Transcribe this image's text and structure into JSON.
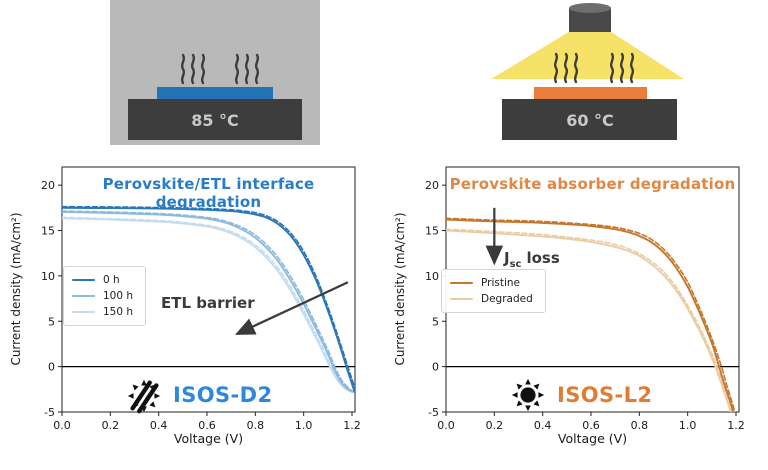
{
  "setup_diagrams": {
    "left": {
      "temperature": "85 °C",
      "sample_color": "#2272b5",
      "background_color": "#b9b9b9",
      "plate_color": "#3d3d3d"
    },
    "right": {
      "temperature": "60 °C",
      "sample_color": "#e87d3c",
      "light_color": "#f6e169",
      "plate_color": "#3d3d3d"
    }
  },
  "chart_data": [
    {
      "type": "line",
      "title": "Perovskite/ETL interface degradation",
      "title_color": "#2a7cc9",
      "xlabel": "Voltage (V)",
      "ylabel": "Current density (mA/cm²)",
      "xlim": [
        0,
        1.2124
      ],
      "ylim": [
        -5,
        22
      ],
      "xticks": [
        "0.0",
        "0.2",
        "0.4",
        "0.6",
        "0.8",
        "1.0",
        "1.2"
      ],
      "yticks": [
        "-5",
        "0",
        "5",
        "10",
        "15",
        "20"
      ],
      "grid": false,
      "legend_position": "center left",
      "legend": [
        {
          "label": "0 h",
          "color": "#2b76b9"
        },
        {
          "label": "100 h",
          "color": "#8ab9dd"
        },
        {
          "label": "150 h",
          "color": "#c3dcef"
        }
      ],
      "badge": {
        "text": "ISOS-D2",
        "color": "#2f86dd",
        "icon": "crossed-sun-icon"
      },
      "annotation_color": "#3a3a3a",
      "annotations": [
        {
          "text": "ETL barrier",
          "arrow": {
            "from": [
              1.183,
              9.3
            ],
            "to": [
              0.724,
              3.6
            ]
          }
        }
      ],
      "series": [
        {
          "name": "150 h",
          "style": "solid",
          "color": "#c3dcef",
          "points": [
            [
              0,
              16.35
            ],
            [
              0.2,
              16.2
            ],
            [
              0.4,
              15.98
            ],
            [
              0.5,
              15.78
            ],
            [
              0.6,
              15.45
            ],
            [
              0.65,
              15.15
            ],
            [
              0.7,
              14.7
            ],
            [
              0.75,
              14.05
            ],
            [
              0.8,
              13.15
            ],
            [
              0.85,
              11.9
            ],
            [
              0.9,
              10.3
            ],
            [
              0.95,
              8.2
            ],
            [
              1.0,
              5.8
            ],
            [
              1.05,
              3.2
            ],
            [
              1.08,
              1.6
            ],
            [
              1.11,
              -0.1
            ],
            [
              1.14,
              -1.5
            ],
            [
              1.17,
              -2.4
            ],
            [
              1.2,
              -2.8
            ]
          ]
        },
        {
          "name": "150 h (dashed)",
          "style": "dashed",
          "color": "#c3dcef",
          "points": [
            [
              0,
              16.45
            ],
            [
              0.2,
              16.3
            ],
            [
              0.4,
              16.1
            ],
            [
              0.5,
              15.9
            ],
            [
              0.6,
              15.58
            ],
            [
              0.65,
              15.3
            ],
            [
              0.7,
              14.88
            ],
            [
              0.75,
              14.27
            ],
            [
              0.8,
              13.42
            ],
            [
              0.85,
              12.22
            ],
            [
              0.9,
              10.65
            ],
            [
              0.95,
              8.6
            ],
            [
              1.0,
              6.2
            ],
            [
              1.05,
              3.55
            ],
            [
              1.08,
              1.95
            ],
            [
              1.11,
              0.25
            ],
            [
              1.14,
              -1.2
            ],
            [
              1.17,
              -2.2
            ],
            [
              1.2,
              -2.7
            ]
          ]
        },
        {
          "name": "100 h",
          "style": "solid",
          "color": "#8ab9dd",
          "points": [
            [
              0,
              17.05
            ],
            [
              0.2,
              16.93
            ],
            [
              0.4,
              16.75
            ],
            [
              0.5,
              16.58
            ],
            [
              0.6,
              16.3
            ],
            [
              0.65,
              16.05
            ],
            [
              0.7,
              15.65
            ],
            [
              0.75,
              15.05
            ],
            [
              0.8,
              14.2
            ],
            [
              0.85,
              13.0
            ],
            [
              0.9,
              11.4
            ],
            [
              0.95,
              9.3
            ],
            [
              1.0,
              6.9
            ],
            [
              1.05,
              4.2
            ],
            [
              1.1,
              1.4
            ],
            [
              1.13,
              -0.5
            ],
            [
              1.16,
              -1.9
            ],
            [
              1.19,
              -2.6
            ],
            [
              1.208,
              -2.8
            ]
          ]
        },
        {
          "name": "100 h (dashed)",
          "style": "dashed",
          "color": "#8ab9dd",
          "points": [
            [
              0,
              17.15
            ],
            [
              0.2,
              17.04
            ],
            [
              0.4,
              16.87
            ],
            [
              0.5,
              16.7
            ],
            [
              0.6,
              16.44
            ],
            [
              0.65,
              16.2
            ],
            [
              0.7,
              15.83
            ],
            [
              0.75,
              15.28
            ],
            [
              0.8,
              14.5
            ],
            [
              0.85,
              13.35
            ],
            [
              0.9,
              11.8
            ],
            [
              0.95,
              9.75
            ],
            [
              1.0,
              7.35
            ],
            [
              1.05,
              4.65
            ],
            [
              1.1,
              1.85
            ],
            [
              1.13,
              -0.1
            ],
            [
              1.16,
              -1.6
            ],
            [
              1.19,
              -2.45
            ],
            [
              1.208,
              -2.75
            ]
          ]
        },
        {
          "name": "0 h",
          "style": "solid",
          "color": "#2b76b9",
          "points": [
            [
              0,
              17.5
            ],
            [
              0.2,
              17.47
            ],
            [
              0.4,
              17.42
            ],
            [
              0.5,
              17.36
            ],
            [
              0.6,
              17.28
            ],
            [
              0.7,
              17.14
            ],
            [
              0.75,
              17.0
            ],
            [
              0.8,
              16.78
            ],
            [
              0.85,
              16.38
            ],
            [
              0.9,
              15.6
            ],
            [
              0.95,
              14.3
            ],
            [
              1.0,
              12.3
            ],
            [
              1.05,
              9.6
            ],
            [
              1.1,
              6.2
            ],
            [
              1.15,
              2.3
            ],
            [
              1.18,
              -0.3
            ],
            [
              1.2,
              -1.9
            ],
            [
              1.21,
              -2.7
            ]
          ]
        },
        {
          "name": "0 h (dashed)",
          "style": "dashed",
          "color": "#2b76b9",
          "points": [
            [
              0,
              17.63
            ],
            [
              0.2,
              17.6
            ],
            [
              0.4,
              17.54
            ],
            [
              0.6,
              17.42
            ],
            [
              0.7,
              17.28
            ],
            [
              0.75,
              17.16
            ],
            [
              0.8,
              16.96
            ],
            [
              0.85,
              16.58
            ],
            [
              0.9,
              15.85
            ],
            [
              0.95,
              14.6
            ],
            [
              1.0,
              12.7
            ],
            [
              1.05,
              10.0
            ],
            [
              1.1,
              6.6
            ],
            [
              1.15,
              2.7
            ],
            [
              1.185,
              -0.2
            ],
            [
              1.205,
              -1.8
            ],
            [
              1.212,
              -2.6
            ]
          ]
        }
      ]
    },
    {
      "type": "line",
      "title": "Perovskite absorber degradation",
      "title_color": "#e28742",
      "xlabel": "Voltage (V)",
      "ylabel": "Current density (mA/cm²)",
      "xlim": [
        0,
        1.2124
      ],
      "ylim": [
        -5,
        22
      ],
      "xticks": [
        "0.0",
        "0.2",
        "0.4",
        "0.6",
        "0.8",
        "1.0",
        "1.2"
      ],
      "yticks": [
        "-5",
        "0",
        "5",
        "10",
        "15",
        "20"
      ],
      "grid": false,
      "legend_position": "center left",
      "legend": [
        {
          "label": "Pristine",
          "color": "#c4762a"
        },
        {
          "label": "Degraded",
          "color": "#eccba4"
        }
      ],
      "badge": {
        "text": "ISOS-L2",
        "color": "#e07c33",
        "icon": "sun-icon"
      },
      "annotation_color": "#3a3a3a",
      "annotations": [
        {
          "pre": "J",
          "sub": "sc",
          "post": "loss",
          "text": "Jsc loss",
          "arrow": {
            "from": [
              0.2,
              17.5
            ],
            "to": [
              0.2,
              11.4
            ]
          }
        }
      ],
      "series": [
        {
          "name": "Degraded",
          "style": "solid",
          "color": "#eccba4",
          "points": [
            [
              0,
              15.0
            ],
            [
              0.2,
              14.7
            ],
            [
              0.4,
              14.35
            ],
            [
              0.5,
              14.1
            ],
            [
              0.6,
              13.75
            ],
            [
              0.7,
              13.2
            ],
            [
              0.75,
              12.8
            ],
            [
              0.8,
              12.2
            ],
            [
              0.85,
              11.3
            ],
            [
              0.9,
              10.1
            ],
            [
              0.95,
              8.5
            ],
            [
              1.0,
              6.4
            ],
            [
              1.05,
              3.9
            ],
            [
              1.08,
              2.2
            ],
            [
              1.1,
              1.0
            ],
            [
              1.12,
              -0.4
            ],
            [
              1.15,
              -2.7
            ],
            [
              1.17,
              -4.3
            ],
            [
              1.18,
              -5.2
            ]
          ]
        },
        {
          "name": "Degraded (dashed)",
          "style": "dashed",
          "color": "#eccba4",
          "points": [
            [
              0,
              15.15
            ],
            [
              0.2,
              14.88
            ],
            [
              0.4,
              14.55
            ],
            [
              0.6,
              13.95
            ],
            [
              0.7,
              13.45
            ],
            [
              0.75,
              13.05
            ],
            [
              0.8,
              12.45
            ],
            [
              0.85,
              11.6
            ],
            [
              0.9,
              10.45
            ],
            [
              0.95,
              8.85
            ],
            [
              1.0,
              6.75
            ],
            [
              1.05,
              4.3
            ],
            [
              1.08,
              2.6
            ],
            [
              1.11,
              0.8
            ],
            [
              1.13,
              -0.7
            ],
            [
              1.16,
              -3.0
            ],
            [
              1.185,
              -5.3
            ]
          ]
        },
        {
          "name": "Pristine",
          "style": "solid",
          "color": "#c4762a",
          "points": [
            [
              0,
              16.2
            ],
            [
              0.1,
              16.1
            ],
            [
              0.2,
              16.0
            ],
            [
              0.3,
              15.93
            ],
            [
              0.4,
              15.84
            ],
            [
              0.5,
              15.7
            ],
            [
              0.6,
              15.5
            ],
            [
              0.7,
              15.15
            ],
            [
              0.75,
              14.85
            ],
            [
              0.8,
              14.4
            ],
            [
              0.85,
              13.7
            ],
            [
              0.9,
              12.6
            ],
            [
              0.95,
              11.0
            ],
            [
              1.0,
              8.8
            ],
            [
              1.05,
              5.9
            ],
            [
              1.1,
              2.6
            ],
            [
              1.13,
              0.0
            ],
            [
              1.15,
              -1.8
            ],
            [
              1.18,
              -4.2
            ],
            [
              1.19,
              -5.3
            ]
          ]
        },
        {
          "name": "Pristine (dashed)",
          "style": "dashed",
          "color": "#c4762a",
          "points": [
            [
              0,
              16.35
            ],
            [
              0.2,
              16.15
            ],
            [
              0.4,
              16.0
            ],
            [
              0.6,
              15.65
            ],
            [
              0.7,
              15.35
            ],
            [
              0.75,
              15.08
            ],
            [
              0.8,
              14.68
            ],
            [
              0.85,
              14.02
            ],
            [
              0.9,
              12.95
            ],
            [
              0.95,
              11.4
            ],
            [
              1.0,
              9.3
            ],
            [
              1.05,
              6.4
            ],
            [
              1.1,
              3.1
            ],
            [
              1.14,
              0.0
            ],
            [
              1.16,
              -1.9
            ],
            [
              1.19,
              -4.5
            ],
            [
              1.196,
              -5.3
            ]
          ]
        }
      ]
    }
  ]
}
